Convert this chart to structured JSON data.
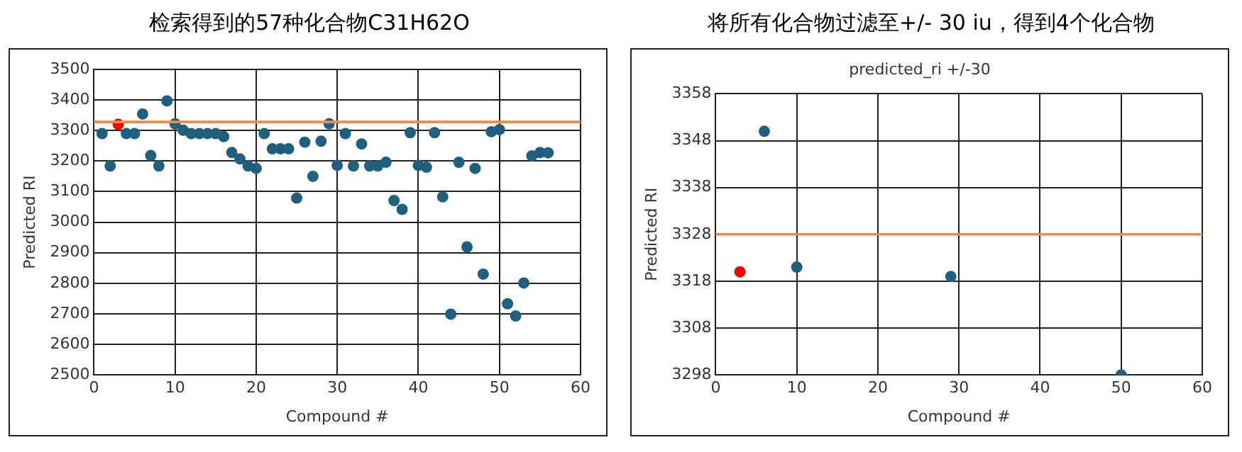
{
  "chart_data": [
    {
      "type": "scatter",
      "title": "检索得到的57种化合物C31H62O",
      "xlabel": "Compound #",
      "ylabel": "Predicted RI",
      "xlim": [
        0,
        60
      ],
      "xticks": [
        0,
        10,
        20,
        30,
        40,
        50,
        60
      ],
      "ylim": [
        2500,
        3500
      ],
      "yticks": [
        2500,
        2600,
        2700,
        2800,
        2900,
        3000,
        3100,
        3200,
        3300,
        3400,
        3500
      ],
      "grid": true,
      "legend": false,
      "marker": "circle",
      "series": [
        {
          "color": "#1f5f80",
          "x": [
            1,
            2,
            4,
            5,
            6,
            7,
            8,
            9,
            10,
            11,
            12,
            13,
            14,
            15,
            16,
            17,
            18,
            19,
            20,
            21,
            22,
            23,
            24,
            25,
            26,
            27,
            28,
            29,
            30,
            31,
            32,
            33,
            34,
            35,
            36,
            37,
            38,
            39,
            40,
            41,
            42,
            43,
            44,
            45,
            46,
            47,
            48,
            49,
            50,
            51,
            52,
            53,
            54,
            55,
            56
          ],
          "values": [
            3290,
            3184,
            3290,
            3290,
            3354,
            3218,
            3184,
            3397,
            3322,
            3301,
            3290,
            3290,
            3290,
            3290,
            3280,
            3228,
            3207,
            3184,
            3176,
            3290,
            3240,
            3240,
            3240,
            3079,
            3262,
            3150,
            3265,
            3322,
            3186,
            3290,
            3184,
            3256,
            3184,
            3184,
            3196,
            3071,
            3042,
            3293,
            3186,
            3180,
            3293,
            3083,
            2699,
            3196,
            2919,
            3176,
            2830,
            3296,
            3303,
            2733,
            2693,
            2801,
            3217,
            3228,
            3227
          ]
        },
        {
          "color": "#ff0000",
          "x": [
            3
          ],
          "values": [
            3320
          ]
        }
      ],
      "ref_lines": [
        {
          "axis": "y",
          "value": 3328,
          "color": "#f08a4b"
        }
      ]
    },
    {
      "type": "scatter",
      "title": "将所有化合物过滤至+/- 30 iu，得到4个化合物",
      "subtitle": "predicted_ri +/-30",
      "xlabel": "Compound #",
      "ylabel": "Predicted RI",
      "xlim": [
        0,
        60
      ],
      "xticks": [
        0,
        10,
        20,
        30,
        40,
        50,
        60
      ],
      "ylim": [
        3298,
        3358
      ],
      "yticks": [
        3298,
        3308,
        3318,
        3328,
        3338,
        3348,
        3358
      ],
      "grid": true,
      "legend": false,
      "marker": "circle",
      "series": [
        {
          "color": "#1f5f80",
          "x": [
            6,
            10,
            29,
            50
          ],
          "values": [
            3350,
            3321,
            3319,
            3298
          ]
        },
        {
          "color": "#ff0000",
          "x": [
            3
          ],
          "values": [
            3320
          ]
        }
      ],
      "ref_lines": [
        {
          "axis": "y",
          "value": 3328,
          "color": "#f08a4b"
        }
      ]
    }
  ]
}
